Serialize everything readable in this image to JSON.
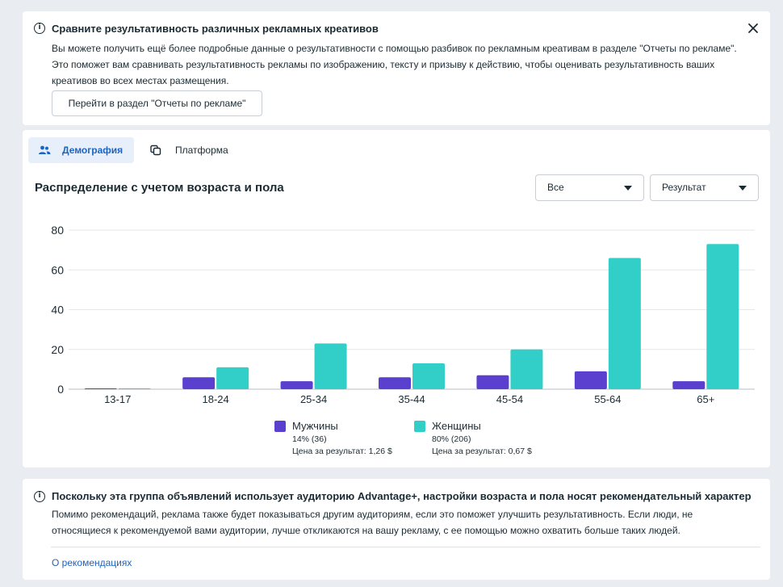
{
  "banner": {
    "title": "Сравните результативность различных рекламных креативов",
    "text": "Вы можете получить ещё более подробные данные о результативности с помощью разбивок по рекламным креативам в разделе \"Отчеты по рекламе\". Это поможет вам сравнивать результативность рекламы по изображению, тексту и призыву к действию, чтобы оценивать результативность ваших креативов во всех местах размещения.",
    "button_label": "Перейти в раздел \"Отчеты по рекламе\""
  },
  "tabs": [
    {
      "label": "Демография",
      "icon": "people-icon",
      "active": true
    },
    {
      "label": "Платформа",
      "icon": "copy-icon",
      "active": false
    }
  ],
  "section_title": "Распределение с учетом возраста и пола",
  "filters": {
    "audience_value": "Все",
    "metric_value": "Результат"
  },
  "chart_data": {
    "type": "bar",
    "categories": [
      "13-17",
      "18-24",
      "25-34",
      "35-44",
      "45-54",
      "55-64",
      "65+"
    ],
    "series": [
      {
        "name": "Мужчины",
        "color": "#5b3fcf",
        "values": [
          0.3,
          6,
          4,
          6,
          7,
          9,
          4
        ]
      },
      {
        "name": "Женщины",
        "color": "#32cfc9",
        "values": [
          0.3,
          11,
          23,
          13,
          20,
          66,
          73
        ]
      }
    ],
    "yticks": [
      0,
      20,
      40,
      60,
      80
    ],
    "ylim": [
      0,
      80
    ],
    "grid": true
  },
  "legend": [
    {
      "name": "Мужчины",
      "share": "14% (36)",
      "cost": "Цена за результат: 1,26 $",
      "color": "#5b3fcf"
    },
    {
      "name": "Женщины",
      "share": "80% (206)",
      "cost": "Цена за результат: 0,67 $",
      "color": "#32cfc9"
    }
  ],
  "advantage": {
    "title": "Поскольку эта группа объявлений использует аудиторию Advantage+, настройки возраста и пола носят рекомендательный характер",
    "text": "Помимо рекомендаций, реклама также будет показываться другим аудиториям, если это поможет улучшить результативность. Если люди, не относящиеся к рекомендуемой вами аудитории, лучше откликаются на вашу рекламу, с ее помощью можно охватить больше таких людей.",
    "link": "О рекомендациях"
  }
}
